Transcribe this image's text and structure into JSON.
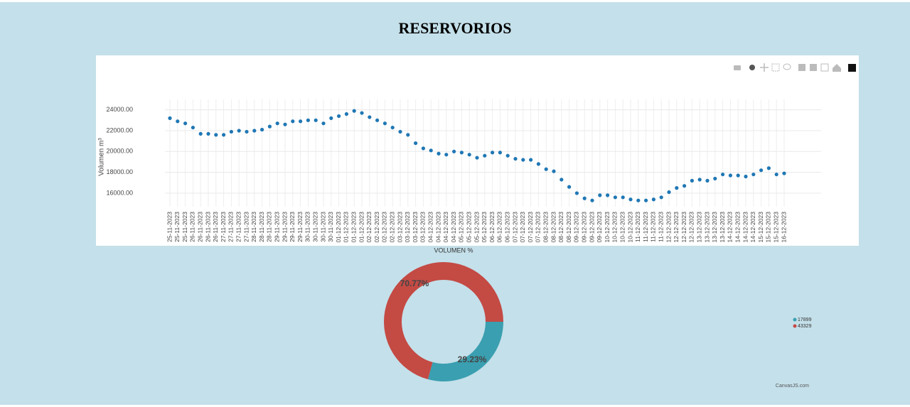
{
  "header": {
    "title": "RESERVORIOS"
  },
  "chart_data": [
    {
      "type": "scatter",
      "ylabel": "Volumen m³",
      "color": "#1f77b4",
      "grid": true,
      "ylim": [
        14700,
        25000
      ],
      "yticks": [
        {
          "value": 16000,
          "label": "16000.00"
        },
        {
          "value": 18000,
          "label": "18000.00"
        },
        {
          "value": 20000,
          "label": "20000.00"
        },
        {
          "value": 22000,
          "label": "22000.00"
        },
        {
          "value": 24000,
          "label": "24000.00"
        }
      ],
      "categories": [
        "25-11-2023",
        "25-11-2023",
        "25-11-2023",
        "26-11-2023",
        "26-11-2023",
        "26-11-2023",
        "26-11-2023",
        "27-11-2023",
        "27-11-2023",
        "27-11-2023",
        "27-11-2023",
        "28-11-2023",
        "28-11-2023",
        "28-11-2023",
        "29-11-2023",
        "29-11-2023",
        "29-11-2023",
        "29-11-2023",
        "30-11-2023",
        "30-11-2023",
        "30-11-2023",
        "30-11-2023",
        "01-12-2023",
        "01-12-2023",
        "01-12-2023",
        "01-12-2023",
        "02-12-2023",
        "02-12-2023",
        "02-12-2023",
        "02-12-2023",
        "03-12-2023",
        "03-12-2023",
        "03-12-2023",
        "03-12-2023",
        "04-12-2023",
        "04-12-2023",
        "04-12-2023",
        "04-12-2023",
        "05-12-2023",
        "05-12-2023",
        "05-12-2023",
        "05-12-2023",
        "06-12-2023",
        "06-12-2023",
        "06-12-2023",
        "07-12-2023",
        "07-12-2023",
        "07-12-2023",
        "07-12-2023",
        "08-12-2023",
        "08-12-2023",
        "08-12-2023",
        "08-12-2023",
        "09-12-2023",
        "09-12-2023",
        "09-12-2023",
        "09-12-2023",
        "10-12-2023",
        "10-12-2023",
        "10-12-2023",
        "10-12-2023",
        "11-12-2023",
        "11-12-2023",
        "11-12-2023",
        "11-12-2023",
        "12-12-2023",
        "12-12-2023",
        "12-12-2023",
        "12-12-2023",
        "13-12-2023",
        "13-12-2023",
        "13-12-2023",
        "13-12-2023",
        "14-12-2023",
        "14-12-2023",
        "14-12-2023",
        "14-12-2023",
        "15-12-2023",
        "15-12-2023",
        "15-12-2023",
        "16-12-2023"
      ],
      "values": [
        23200,
        22900,
        22700,
        22300,
        21700,
        21700,
        21600,
        21600,
        21900,
        22000,
        21900,
        22000,
        22100,
        22400,
        22700,
        22600,
        22900,
        22900,
        23000,
        23000,
        22700,
        23200,
        23400,
        23600,
        23900,
        23700,
        23300,
        23000,
        22700,
        22300,
        21900,
        21600,
        20800,
        20300,
        20100,
        19800,
        19700,
        20000,
        19900,
        19700,
        19400,
        19600,
        19900,
        19900,
        19600,
        19300,
        19200,
        19200,
        18800,
        18300,
        18100,
        17300,
        16600,
        16000,
        15500,
        15300,
        15800,
        15800,
        15600,
        15600,
        15400,
        15300,
        15300,
        15400,
        15600,
        16100,
        16500,
        16700,
        17200,
        17300,
        17200,
        17400,
        17800,
        17700,
        17700,
        17600,
        17800,
        18200,
        18400,
        17800,
        17900
      ]
    },
    {
      "type": "pie",
      "title": "VOLUMEN %",
      "categories": [
        "17899",
        "43329"
      ],
      "values": [
        17899,
        43329
      ],
      "value_labels": [
        "29.23%",
        "70.77%"
      ],
      "colors": [
        "#3a9fb0",
        "#c44a44"
      ],
      "credit": "CanvasJS.com"
    }
  ]
}
